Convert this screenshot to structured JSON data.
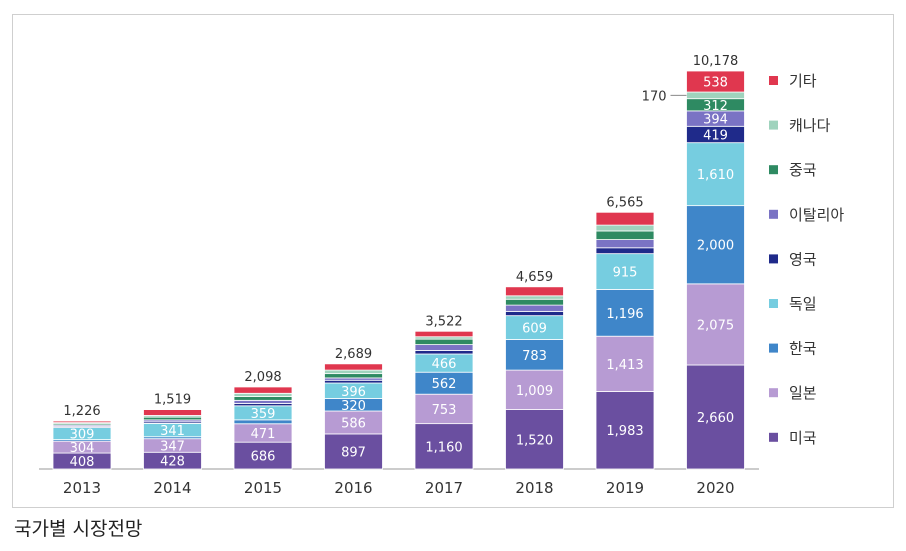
{
  "caption": "국가별 시장전망",
  "chart_data": {
    "type": "bar",
    "stacked": true,
    "categories": [
      "2013",
      "2014",
      "2015",
      "2016",
      "2017",
      "2018",
      "2019",
      "2020"
    ],
    "totals": [
      1226,
      1519,
      2098,
      2689,
      3522,
      4659,
      6565,
      10178
    ],
    "totals_labels": [
      "1,226",
      "1,519",
      "2,098",
      "2,689",
      "3,522",
      "4,659",
      "6,565",
      "10,178"
    ],
    "ylim": [
      0,
      10178
    ],
    "grid": false,
    "legend": "right",
    "series": [
      {
        "name": "미국",
        "color": "#6a4fa0",
        "values": [
          408,
          428,
          686,
          897,
          1160,
          1520,
          1983,
          2660
        ],
        "labels": [
          "408",
          "428",
          "686",
          "897",
          "1,160",
          "1,520",
          "1,983",
          "2,660"
        ]
      },
      {
        "name": "일본",
        "color": "#b79bd3",
        "values": [
          304,
          347,
          471,
          586,
          753,
          1009,
          1413,
          2075
        ],
        "labels": [
          "304",
          "347",
          "471",
          "586",
          "753",
          "1,009",
          "1,413",
          "2,075"
        ]
      },
      {
        "name": "한국",
        "color": "#3f86c9",
        "values": [
          40,
          50,
          100,
          320,
          562,
          783,
          1196,
          2000
        ],
        "labels": [
          "",
          "",
          "",
          "320",
          "562",
          "783",
          "1,196",
          "2,000"
        ]
      },
      {
        "name": "독일",
        "color": "#76cde0",
        "values": [
          309,
          341,
          359,
          396,
          466,
          609,
          915,
          1610
        ],
        "labels": [
          "309",
          "341",
          "359",
          "396",
          "466",
          "609",
          "915",
          "1,610"
        ]
      },
      {
        "name": "영국",
        "color": "#1f2a8a",
        "values": [
          30,
          40,
          60,
          70,
          90,
          110,
          150,
          419
        ],
        "labels": [
          "",
          "",
          "",
          "",
          "",
          "",
          "",
          "419"
        ]
      },
      {
        "name": "이탈리아",
        "color": "#7a73c4",
        "values": [
          30,
          50,
          80,
          60,
          150,
          160,
          210,
          394
        ],
        "labels": [
          "",
          "",
          "",
          "",
          "",
          "",
          "",
          "394"
        ]
      },
      {
        "name": "중국",
        "color": "#2e8a62",
        "values": [
          35,
          70,
          100,
          110,
          140,
          150,
          220,
          312
        ],
        "labels": [
          "",
          "",
          "",
          "",
          "",
          "",
          "",
          "312"
        ]
      },
      {
        "name": "캐나다",
        "color": "#9fd3bd",
        "values": [
          30,
          43,
          80,
          90,
          61,
          88,
          150,
          170
        ],
        "labels": [
          "",
          "",
          "",
          "",
          "",
          "",
          "",
          ""
        ]
      },
      {
        "name": "기타",
        "color": "#e0374f",
        "values": [
          40,
          150,
          162,
          160,
          140,
          230,
          328,
          538
        ],
        "labels": [
          "",
          "",
          "",
          "",
          "",
          "",
          "",
          "538"
        ]
      }
    ],
    "annotations": [
      {
        "text": "170",
        "category": "2020",
        "series": "캐나다"
      }
    ]
  }
}
